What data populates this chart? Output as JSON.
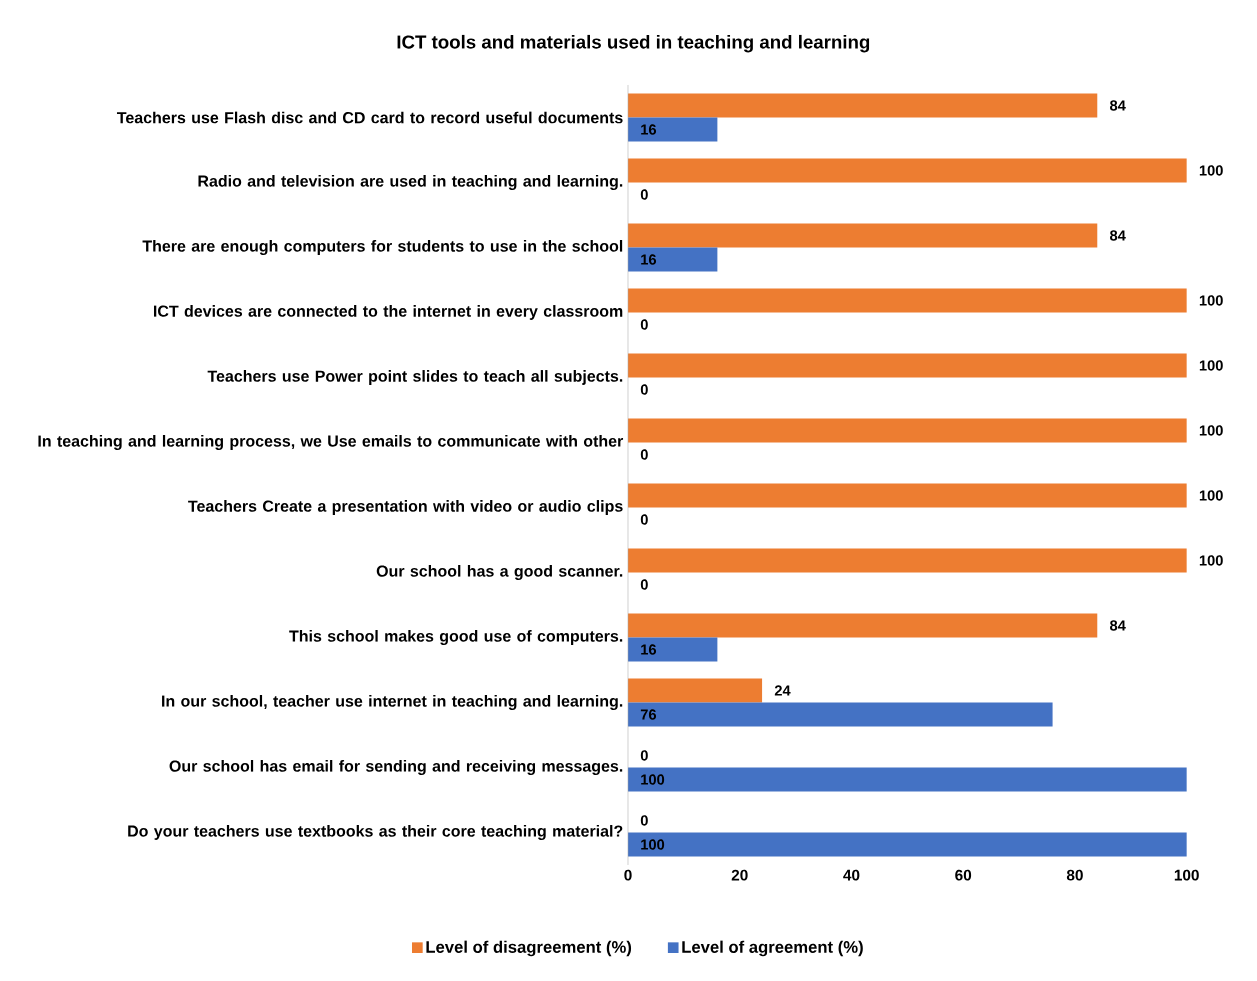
{
  "chart_data": {
    "type": "bar",
    "orientation": "horizontal",
    "title": "ICT tools  and materials used in teaching and learning",
    "categories": [
      "Teachers use Flash disc and CD card to record useful documents",
      "Radio and television are used in teaching and learning.",
      "There are enough computers for students to use in the school",
      "ICT devices are connected to the internet in every classroom",
      "Teachers use Power point slides to teach all subjects.",
      "In teaching and learning process, we Use emails to communicate with other",
      "Teachers Create a presentation with video or audio clips",
      "Our school has a good scanner.",
      "This school makes good use of computers.",
      "In our school, teacher use internet in teaching and learning.",
      "Our school has email for sending and receiving messages.",
      "Do your teachers use textbooks as their core teaching material?"
    ],
    "series": [
      {
        "name": "Level of disagreement (%)",
        "color": "#ed7d31",
        "values": [
          84,
          100,
          84,
          100,
          100,
          100,
          100,
          100,
          84,
          24,
          0,
          0
        ]
      },
      {
        "name": "Level of agreement (%)",
        "color": "#4472c4",
        "values": [
          16,
          0,
          16,
          0,
          0,
          0,
          0,
          0,
          16,
          76,
          100,
          100
        ]
      }
    ],
    "xlim": [
      0,
      100
    ],
    "xticks": [
      0,
      20,
      40,
      60,
      80,
      100
    ],
    "data_labels": true,
    "legend": "bottom"
  }
}
